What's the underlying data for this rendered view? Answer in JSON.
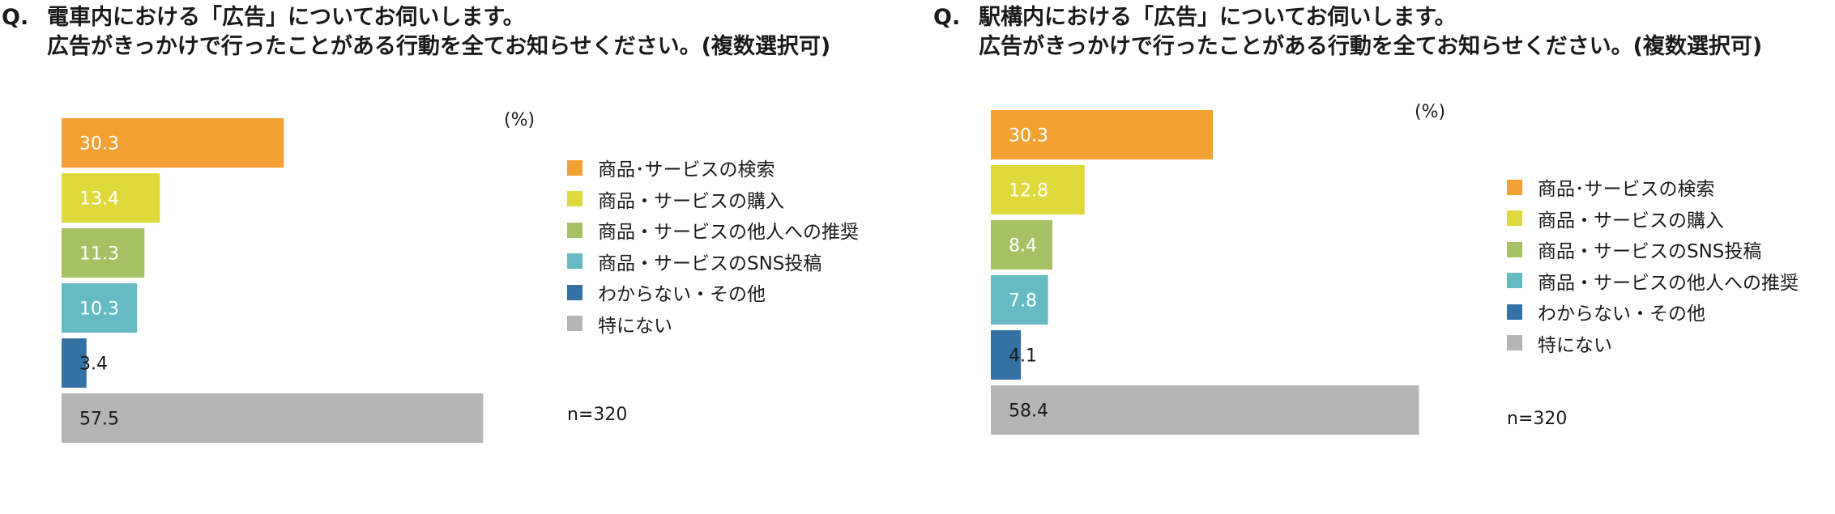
{
  "chart_data": [
    {
      "type": "bar",
      "orientation": "horizontal",
      "title": {
        "prefix": "Q.",
        "line1": "電車内における「広告」についてお伺いします。",
        "line2": "広告がきっかけで行ったことがある行動を全てお知らせください。(複数選択可)"
      },
      "unit": "(%)",
      "n": "n=320",
      "xlim": [
        0,
        60
      ],
      "grid": false,
      "legend_position": "right",
      "categories": [
        "商品･サービスの検索",
        "商品・サービスの購入",
        "商品・サービスの他人への推奨",
        "商品・サービスのSNS投稿",
        "わからない・その他",
        "特にない"
      ],
      "values": [
        30.3,
        13.4,
        11.3,
        10.3,
        3.4,
        57.5
      ],
      "value_labels": [
        "30.3",
        "13.4",
        "11.3",
        "10.3",
        "3.4",
        "57.5"
      ],
      "colors": [
        "#f4a032",
        "#e0d93b",
        "#a6c265",
        "#66bac4",
        "#3472a3",
        "#b5b5b5"
      ],
      "label_colors": [
        "#ffffff",
        "#ffffff",
        "#ffffff",
        "#ffffff",
        "#1a1a1a",
        "#1a1a1a"
      ]
    },
    {
      "type": "bar",
      "orientation": "horizontal",
      "title": {
        "prefix": "Q.",
        "line1": "駅構内における「広告」についてお伺いします。",
        "line2": "広告がきっかけで行ったことがある行動を全てお知らせください。(複数選択可)"
      },
      "unit": "(%)",
      "n": "n=320",
      "xlim": [
        0,
        60
      ],
      "grid": false,
      "legend_position": "right",
      "categories": [
        "商品･サービスの検索",
        "商品・サービスの購入",
        "商品・サービスのSNS投稿",
        "商品・サービスの他人への推奨",
        "わからない・その他",
        "特にない"
      ],
      "values": [
        30.3,
        12.8,
        8.4,
        7.8,
        4.1,
        58.4
      ],
      "value_labels": [
        "30.3",
        "12.8",
        "8.4",
        "7.8",
        "4.1",
        "58.4"
      ],
      "colors": [
        "#f4a032",
        "#e0d93b",
        "#a6c265",
        "#66bac4",
        "#3472a3",
        "#b5b5b5"
      ],
      "label_colors": [
        "#ffffff",
        "#ffffff",
        "#ffffff",
        "#ffffff",
        "#1a1a1a",
        "#1a1a1a"
      ]
    }
  ]
}
